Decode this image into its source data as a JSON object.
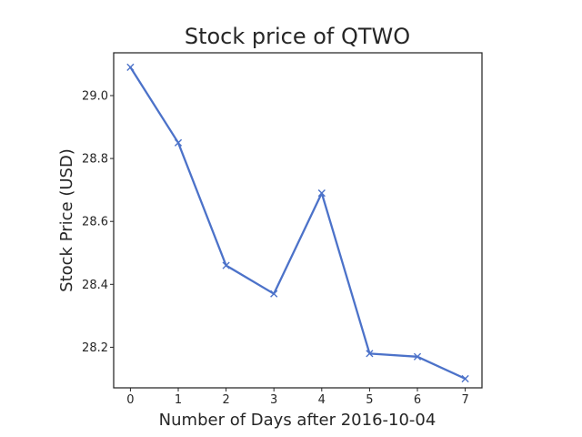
{
  "chart_data": {
    "type": "line",
    "title": "Stock price of QTWO",
    "xlabel": "Number of Days after 2016-10-04",
    "ylabel": "Stock Price (USD)",
    "x": [
      0,
      1,
      2,
      3,
      4,
      5,
      6,
      7
    ],
    "series": [
      {
        "values": [
          29.09,
          28.85,
          28.46,
          28.37,
          28.69,
          28.18,
          28.17,
          28.1
        ],
        "color": "#4c72c9",
        "marker": "x"
      }
    ],
    "xlim": [
      -0.35,
      7.35
    ],
    "ylim": [
      28.071,
      29.136
    ],
    "xticks": [
      "0",
      "1",
      "2",
      "3",
      "4",
      "5",
      "6",
      "7"
    ],
    "yticks": [
      "28.2",
      "28.4",
      "28.6",
      "28.8",
      "29.0"
    ],
    "grid": false,
    "legend": "none"
  }
}
